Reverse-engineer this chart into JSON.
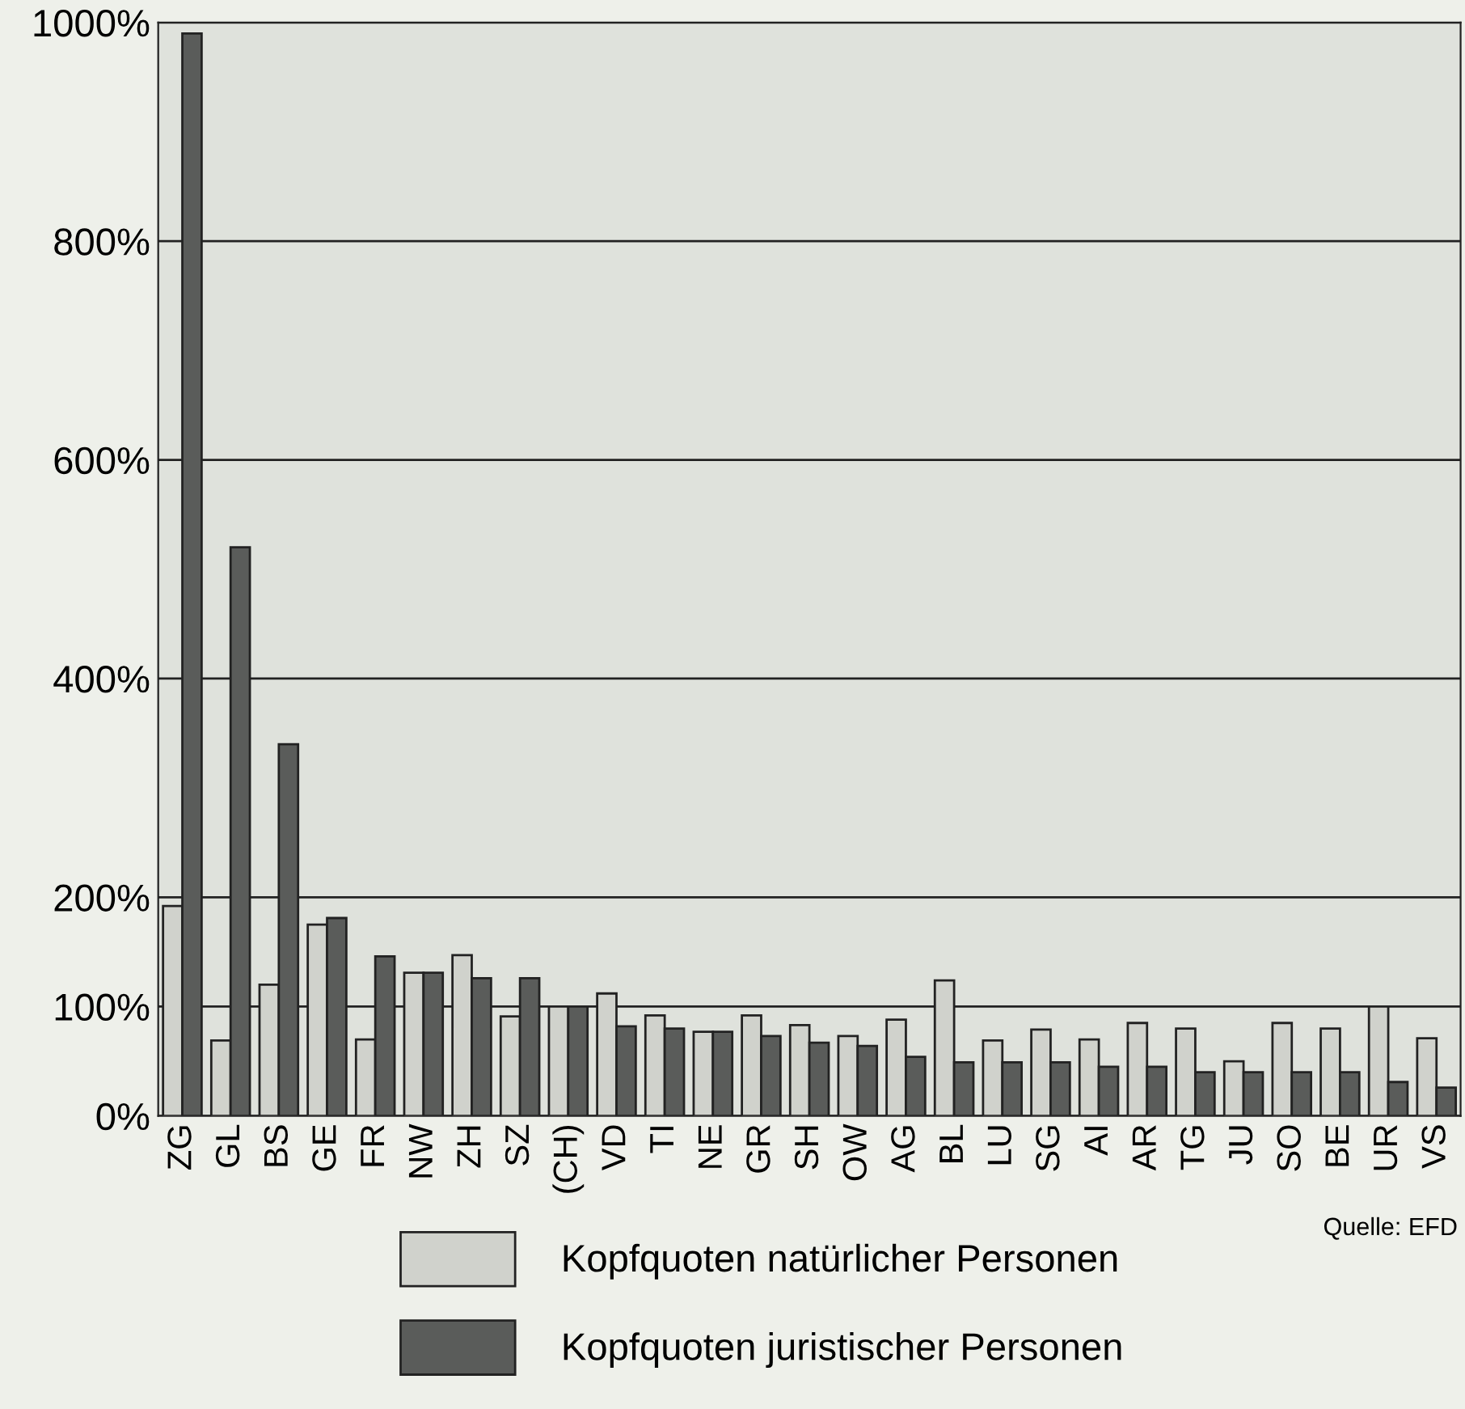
{
  "chart_data": {
    "type": "bar",
    "categories": [
      "ZG",
      "GL",
      "BS",
      "GE",
      "FR",
      "NW",
      "ZH",
      "SZ",
      "(CH)",
      "VD",
      "TI",
      "NE",
      "GR",
      "SH",
      "OW",
      "AG",
      "BL",
      "LU",
      "SG",
      "AI",
      "AR",
      "TG",
      "JU",
      "SO",
      "BE",
      "UR",
      "VS"
    ],
    "series": [
      {
        "name": "Kopfquoten natürlicher Personen",
        "color": "#d0d2cc",
        "values": [
          192,
          69,
          120,
          175,
          70,
          131,
          147,
          91,
          100,
          112,
          92,
          77,
          92,
          83,
          73,
          88,
          124,
          69,
          79,
          70,
          85,
          80,
          50,
          85,
          80,
          100,
          71
        ]
      },
      {
        "name": "Kopfquoten juristischer Personen",
        "color": "#5a5c5a",
        "values": [
          990,
          520,
          340,
          181,
          146,
          131,
          126,
          126,
          100,
          82,
          80,
          77,
          73,
          67,
          64,
          54,
          49,
          49,
          49,
          45,
          45,
          40,
          40,
          40,
          40,
          31,
          26
        ]
      }
    ],
    "ylim": [
      0,
      1000
    ],
    "yticks": [
      {
        "value": 0,
        "label": "0%"
      },
      {
        "value": 100,
        "label": "100%"
      },
      {
        "value": 200,
        "label": "200%"
      },
      {
        "value": 400,
        "label": "400%"
      },
      {
        "value": 600,
        "label": "600%"
      },
      {
        "value": 800,
        "label": "800%"
      },
      {
        "value": 1000,
        "label": "1000%"
      }
    ],
    "grid": "y",
    "legend": "bottom",
    "annotations": [
      "Quelle: EFD"
    ]
  }
}
